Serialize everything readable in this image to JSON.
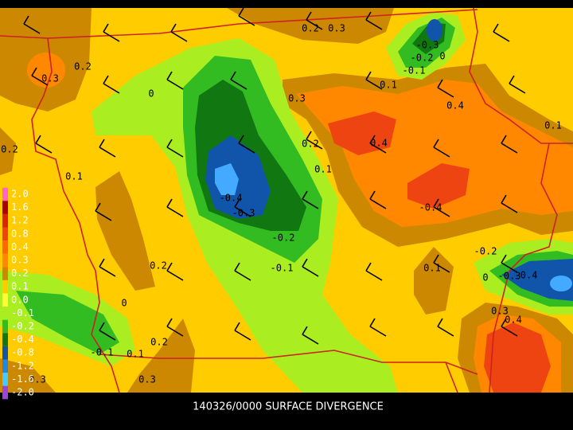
{
  "caption": "140326/0000 SURFACE DIVERGENCE",
  "legend": [
    "2.0",
    "1.6",
    "1.2",
    "0.8",
    "0.4",
    "0.3",
    "0.2",
    "0.1",
    "0.0",
    "-0.1",
    "-0.2",
    "-0.4",
    "-0.8",
    "-1.2",
    "-1.6",
    "-2.0"
  ],
  "contour_labels": [
    "0.2",
    "0.3",
    "-0.3",
    "-0.2",
    "0",
    "-0.1",
    "0.3",
    "0.2",
    "0",
    "0.1",
    "0.3",
    "0.4",
    "0.1",
    "0.2",
    "0.2",
    "0.4",
    "0.1",
    "0.1",
    "-0.4",
    "-0.3",
    "-0.4",
    "-0.2",
    "-0.1",
    "0.2",
    "0.1",
    "-0.2",
    "0",
    "-0.3",
    "-0.4",
    "0",
    "0.3",
    "0.4",
    "0.2",
    "-0.1",
    "0.1",
    "0.3",
    "0.3"
  ]
}
